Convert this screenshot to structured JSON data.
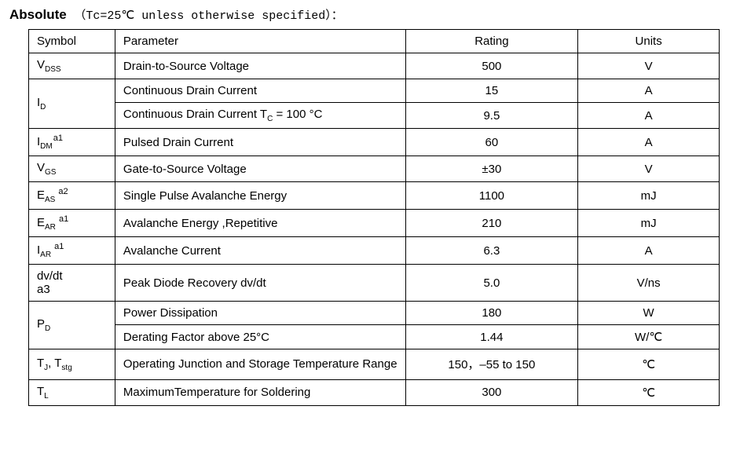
{
  "header": {
    "title": "Absolute",
    "condition_prefix": "（Tc=25℃ unless otherwise specified）",
    "colon": "："
  },
  "table": {
    "headers": {
      "symbol": "Symbol",
      "parameter": "Parameter",
      "rating": "Rating",
      "units": "Units"
    },
    "rows": {
      "vdss": {
        "sym_pre": "V",
        "sym_sub": "DSS",
        "sym_sup": "",
        "param": "Drain-to-Source Voltage",
        "rating": "500",
        "units": "V"
      },
      "id": {
        "sym_pre": "I",
        "sym_sub": "D",
        "sym_sup": ""
      },
      "id_r1": {
        "param": "Continuous Drain Current",
        "rating": "15",
        "units": "A"
      },
      "id_r2": {
        "param_pre": "Continuous Drain Current T",
        "param_sub": "C",
        "param_post": " = 100 °C",
        "rating": "9.5",
        "units": "A"
      },
      "idm": {
        "sym_pre": "I",
        "sym_sub": "DM",
        "sym_sup": "a1",
        "param": "Pulsed Drain Current",
        "rating": "60",
        "units": "A"
      },
      "vgs": {
        "sym_pre": "V",
        "sym_sub": "GS",
        "sym_sup": "",
        "param": "Gate-to-Source Voltage",
        "rating": "±30",
        "units": "V"
      },
      "eas": {
        "sym_pre": "E",
        "sym_sub": "AS",
        "sym_sup": " a2",
        "param": "Single Pulse Avalanche Energy",
        "rating": "1100",
        "units": "mJ"
      },
      "ear": {
        "sym_pre": "E",
        "sym_sub": "AR",
        "sym_sup": " a1",
        "param": "Avalanche Energy ,Repetitive",
        "rating": "210",
        "units": "mJ"
      },
      "iar": {
        "sym_pre": "I",
        "sym_sub": "AR",
        "sym_sup": " a1",
        "param": "Avalanche Current",
        "rating": "6.3",
        "units": "A"
      },
      "dvdt": {
        "sym_line1": "dv/dt",
        "sym_line2": "a3",
        "param": "Peak Diode Recovery dv/dt",
        "rating": "5.0",
        "units": "V/ns"
      },
      "pd": {
        "sym_pre": "P",
        "sym_sub": "D",
        "sym_sup": ""
      },
      "pd_r1": {
        "param": "Power Dissipation",
        "rating": "180",
        "units": "W"
      },
      "pd_r2": {
        "param": "Derating Factor above 25°C",
        "rating": "1.44",
        "units": "W/℃"
      },
      "tj": {
        "sym_p1": "T",
        "sym_s1": "J",
        "sym_comma": ",  ",
        "sym_p2": "T",
        "sym_s2": "stg",
        "param": "Operating Junction and Storage Temperature Range",
        "rating": "150，–55 to 150",
        "units": "℃"
      },
      "tl": {
        "sym_pre": "T",
        "sym_sub": "L",
        "sym_sup": "",
        "param": "MaximumTemperature for Soldering",
        "rating": "300",
        "units": "℃"
      }
    }
  },
  "style": {
    "text_color": "#000000",
    "bg_color": "#ffffff",
    "border_color": "#000000",
    "header_fontsize": 16,
    "cell_fontsize": 15
  }
}
